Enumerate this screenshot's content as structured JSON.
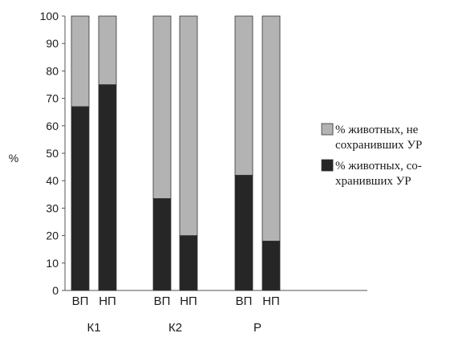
{
  "chart_data": {
    "type": "bar",
    "stacked": true,
    "ylabel": "%",
    "ylim": [
      0,
      100
    ],
    "yticks": [
      0,
      10,
      20,
      30,
      40,
      50,
      60,
      70,
      80,
      90,
      100
    ],
    "categories": [
      "ВП",
      "НП",
      "ВП",
      "НП",
      "ВП",
      "НП"
    ],
    "groups": [
      {
        "label": "К1",
        "bars": [
          0,
          1
        ]
      },
      {
        "label": "К2",
        "bars": [
          2,
          3
        ]
      },
      {
        "label": "Р",
        "bars": [
          4,
          5
        ]
      }
    ],
    "series": [
      {
        "name": [
          "% животных, со-",
          "хранивших УР"
        ],
        "color": "#262626",
        "values": [
          67,
          75,
          33.5,
          20,
          42,
          18
        ]
      },
      {
        "name": [
          "% животных, не",
          "сохранивших УР"
        ],
        "color": "#b3b3b3",
        "values": [
          33,
          25,
          66.5,
          80,
          58,
          82
        ]
      }
    ],
    "legend": {
      "placement": "right",
      "order": [
        1,
        0
      ]
    },
    "grid": false
  }
}
